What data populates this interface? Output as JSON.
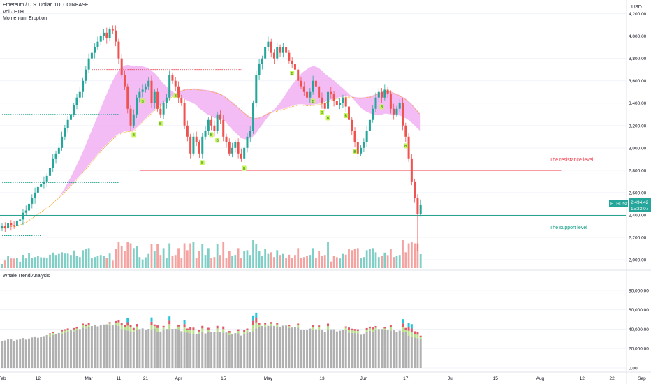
{
  "header": {
    "symbol_title": "Ethereum / U.S. Dollar, 1D, COINBASE",
    "indicator_1": "Vol · ETH",
    "indicator_2": "Momentum Eruption",
    "currency": "USD"
  },
  "lower_pane": {
    "title": "Whale Trend Analysis",
    "y_ticks": [
      "80,000.00",
      "60,000.00",
      "40,000.00",
      "20,000.00",
      "0.00"
    ],
    "y_tick_values": [
      80000,
      60000,
      40000,
      20000,
      0
    ]
  },
  "price_badge": {
    "ticker": "ETHUSD",
    "price": "2,494.42",
    "countdown": "15:33:07",
    "color": "#26a69a"
  },
  "annotations": {
    "resistance_label": "The resistance level",
    "support_label": "The support level",
    "resistance_color": "#f23645",
    "support_color": "#089981",
    "signal_glyph": "B"
  },
  "x_axis": {
    "labels": [
      "Feb",
      "12",
      "Mar",
      "11",
      "21",
      "Apr",
      "15",
      "May",
      "13",
      "Jun",
      "17",
      "Jul",
      "15",
      "Aug",
      "12",
      "22",
      "Sep"
    ]
  },
  "colors": {
    "up": "#26a69a",
    "down": "#ef5350",
    "vol_up": "#7fcfc6",
    "vol_down": "#f5a3a1",
    "cloud": "#f0a6f0",
    "whale_grey": "#b0b0b0",
    "whale_green": "#b7e08a",
    "whale_red": "#e05a6a",
    "whale_cyan": "#26c6da",
    "signal_bg": "#c6f25a"
  },
  "chart_data": {
    "type": "candlestick",
    "y_axis_ticks": [
      "4,200.00",
      "4,000.00",
      "3,800.00",
      "3,600.00",
      "3,400.00",
      "3,200.00",
      "3,000.00",
      "2,800.00",
      "2,600.00",
      "2,400.00",
      "2,200.00",
      "2,000.00"
    ],
    "y_tick_values": [
      4200,
      4000,
      3800,
      3600,
      3400,
      3200,
      3000,
      2800,
      2600,
      2400,
      2200,
      2000
    ],
    "ylim": [
      1950,
      4260
    ],
    "resistance_price": 2800,
    "support_price": 2395,
    "dotted_levels": [
      {
        "price": 4000,
        "color": "#f23645",
        "start_day": 0,
        "end_day": 192
      },
      {
        "price": 3700,
        "color": "#f23645",
        "start_day": 30,
        "end_day": 80
      },
      {
        "price": 3300,
        "color": "#089981",
        "start_day": 0,
        "end_day": 39
      },
      {
        "price": 2690,
        "color": "#089981",
        "start_day": 0,
        "end_day": 39
      },
      {
        "price": 2215,
        "color": "#089981",
        "start_day": 0,
        "end_day": 13
      }
    ],
    "candle_closes": [
      2300,
      2280,
      2330,
      2310,
      2300,
      2350,
      2360,
      2420,
      2440,
      2500,
      2550,
      2600,
      2650,
      2680,
      2700,
      2750,
      2820,
      2900,
      2950,
      3000,
      3100,
      3180,
      3250,
      3300,
      3380,
      3450,
      3500,
      3600,
      3700,
      3800,
      3850,
      3900,
      3950,
      4000,
      4030,
      3980,
      4060,
      4050,
      3950,
      3800,
      3650,
      3550,
      3350,
      3200,
      3300,
      3450,
      3500,
      3520,
      3550,
      3600,
      3400,
      3500,
      3350,
      3300,
      3400,
      3450,
      3650,
      3600,
      3550,
      3450,
      3400,
      3200,
      3100,
      2950,
      3100,
      3050,
      2950,
      3100,
      3150,
      3250,
      3200,
      3150,
      3300,
      3250,
      3100,
      3050,
      2950,
      3000,
      3050,
      2950,
      2900,
      3000,
      3100,
      3150,
      3400,
      3650,
      3750,
      3800,
      3900,
      3950,
      3850,
      3800,
      3900,
      3850,
      3900,
      3850,
      3780,
      3750,
      3700,
      3600,
      3550,
      3500,
      3450,
      3500,
      3600,
      3550,
      3450,
      3400,
      3350,
      3500,
      3480,
      3420,
      3380,
      3400,
      3450,
      3370,
      3250,
      3150,
      3050,
      2950,
      3000,
      3050,
      3150,
      3250,
      3350,
      3450,
      3500,
      3450,
      3520,
      3480,
      3350,
      3300,
      3350,
      3400,
      3200,
      3100,
      2900,
      2700,
      2550,
      2410,
      2494
    ]
  }
}
